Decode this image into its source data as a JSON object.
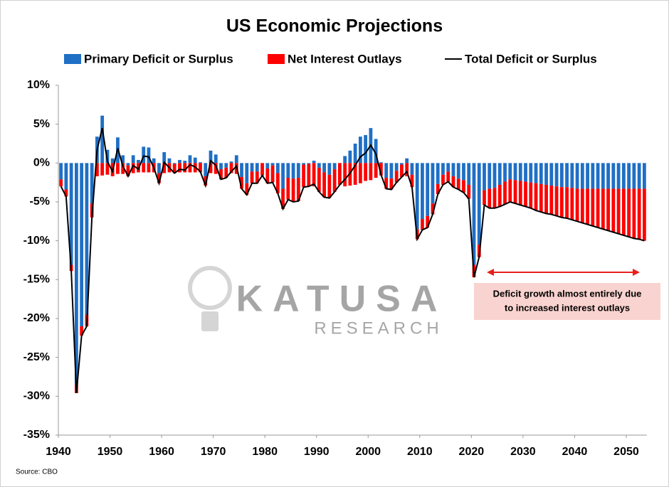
{
  "chart_data": {
    "type": "bar",
    "title": "US Economic Projections",
    "x": [
      1940,
      1941,
      1942,
      1943,
      1944,
      1945,
      1946,
      1947,
      1948,
      1949,
      1950,
      1951,
      1952,
      1953,
      1954,
      1955,
      1956,
      1957,
      1958,
      1959,
      1960,
      1961,
      1962,
      1963,
      1964,
      1965,
      1966,
      1967,
      1968,
      1969,
      1970,
      1971,
      1972,
      1973,
      1974,
      1975,
      1976,
      1977,
      1978,
      1979,
      1980,
      1981,
      1982,
      1983,
      1984,
      1985,
      1986,
      1987,
      1988,
      1989,
      1990,
      1991,
      1992,
      1993,
      1994,
      1995,
      1996,
      1997,
      1998,
      1999,
      2000,
      2001,
      2002,
      2003,
      2004,
      2005,
      2006,
      2007,
      2008,
      2009,
      2010,
      2011,
      2012,
      2013,
      2014,
      2015,
      2016,
      2017,
      2018,
      2019,
      2020,
      2021,
      2022,
      2023,
      2024,
      2025,
      2026,
      2027,
      2028,
      2029,
      2030,
      2031,
      2032,
      2033,
      2034,
      2035,
      2036,
      2037,
      2038,
      2039,
      2040,
      2041,
      2042,
      2043,
      2044,
      2045,
      2046,
      2047,
      2048,
      2049,
      2050,
      2051,
      2052,
      2053
    ],
    "series": [
      {
        "name": "Primary Deficit or Surplus",
        "color": "#1f6fc5",
        "values": [
          -2.1,
          -3.4,
          -13.1,
          -28.5,
          -21.0,
          -19.5,
          -5.2,
          3.4,
          6.1,
          1.7,
          0.6,
          3.3,
          1.0,
          -0.3,
          1.0,
          0.4,
          2.1,
          2.0,
          0.6,
          -1.3,
          1.4,
          0.6,
          -0.1,
          0.4,
          0.3,
          1.0,
          0.7,
          0.1,
          -1.7,
          1.6,
          1.1,
          -0.8,
          -0.6,
          0.2,
          1.0,
          -1.8,
          -2.6,
          -1.1,
          -1.1,
          0.0,
          -0.7,
          -0.3,
          -1.3,
          -3.3,
          -1.9,
          -2.0,
          -1.9,
          -0.2,
          -0.1,
          0.3,
          -0.6,
          -1.2,
          -1.5,
          -0.8,
          0.0,
          0.9,
          1.6,
          2.5,
          3.4,
          3.6,
          4.5,
          3.1,
          0.1,
          -1.9,
          -2.0,
          -1.0,
          -0.2,
          0.6,
          -1.5,
          -8.5,
          -7.2,
          -6.8,
          -5.2,
          -2.7,
          -1.5,
          -1.1,
          -1.7,
          -2.0,
          -2.2,
          -2.8,
          -13.1,
          -10.5,
          -3.5,
          -3.3,
          -3.2,
          -2.8,
          -2.4,
          -2.1,
          -2.2,
          -2.3,
          -2.4,
          -2.5,
          -2.6,
          -2.7,
          -2.8,
          -2.9,
          -3.0,
          -3.1,
          -3.1,
          -3.2,
          -3.3,
          -3.3,
          -3.3,
          -3.3,
          -3.3,
          -3.3,
          -3.3,
          -3.3,
          -3.3,
          -3.3,
          -3.3,
          -3.3,
          -3.3,
          -3.3
        ]
      },
      {
        "name": "Net Interest Outlays",
        "color": "#ff0000",
        "values": [
          -0.9,
          -0.9,
          -0.8,
          -1.1,
          -1.2,
          -1.5,
          -1.8,
          -1.7,
          -1.6,
          -1.5,
          -1.7,
          -1.4,
          -1.4,
          -1.4,
          -1.3,
          -1.2,
          -1.2,
          -1.2,
          -1.2,
          -1.3,
          -1.3,
          -1.2,
          -1.2,
          -1.2,
          -1.2,
          -1.2,
          -1.2,
          -1.2,
          -1.2,
          -1.3,
          -1.4,
          -1.3,
          -1.3,
          -1.3,
          -1.4,
          -1.5,
          -1.5,
          -1.5,
          -1.5,
          -1.6,
          -1.9,
          -2.2,
          -2.6,
          -2.6,
          -2.8,
          -3.0,
          -3.0,
          -2.9,
          -2.9,
          -3.0,
          -3.1,
          -3.2,
          -3.0,
          -2.9,
          -2.8,
          -3.0,
          -2.9,
          -2.8,
          -2.6,
          -2.3,
          -2.2,
          -1.9,
          -1.6,
          -1.4,
          -1.4,
          -1.5,
          -1.6,
          -1.7,
          -1.6,
          -1.3,
          -1.4,
          -1.5,
          -1.4,
          -1.3,
          -1.3,
          -1.3,
          -1.4,
          -1.4,
          -1.6,
          -1.8,
          -1.6,
          -1.6,
          -1.9,
          -2.5,
          -2.6,
          -2.8,
          -2.9,
          -2.9,
          -3.0,
          -3.1,
          -3.2,
          -3.3,
          -3.5,
          -3.6,
          -3.7,
          -3.7,
          -3.8,
          -3.9,
          -4.0,
          -4.1,
          -4.2,
          -4.4,
          -4.6,
          -4.8,
          -5.0,
          -5.2,
          -5.4,
          -5.6,
          -5.8,
          -6.0,
          -6.2,
          -6.4,
          -6.5,
          -6.7
        ]
      },
      {
        "name": "Total Deficit or Surplus",
        "color": "#000000",
        "line": true,
        "values": [
          -3.0,
          -4.3,
          -13.9,
          -29.6,
          -22.2,
          -21.0,
          -7.0,
          1.7,
          4.5,
          0.2,
          -1.1,
          1.9,
          -0.4,
          -1.7,
          -0.3,
          -0.8,
          0.9,
          0.8,
          -0.6,
          -2.6,
          0.1,
          -0.6,
          -1.3,
          -0.8,
          -0.9,
          -0.2,
          -0.5,
          -1.1,
          -2.9,
          0.3,
          -0.3,
          -2.1,
          -1.9,
          -1.1,
          -0.4,
          -3.3,
          -4.1,
          -2.6,
          -2.6,
          -1.6,
          -2.6,
          -2.5,
          -3.9,
          -5.9,
          -4.7,
          -5.0,
          -4.9,
          -3.1,
          -3.0,
          -2.7,
          -3.7,
          -4.4,
          -4.5,
          -3.7,
          -2.8,
          -2.1,
          -1.3,
          -0.3,
          0.8,
          1.3,
          2.3,
          1.2,
          -1.5,
          -3.3,
          -3.4,
          -2.5,
          -1.8,
          -1.1,
          -3.1,
          -9.8,
          -8.6,
          -8.3,
          -6.6,
          -4.0,
          -2.8,
          -2.4,
          -3.1,
          -3.4,
          -3.8,
          -4.6,
          -14.7,
          -12.1,
          -5.4,
          -5.8,
          -5.8,
          -5.6,
          -5.3,
          -5.0,
          -5.2,
          -5.4,
          -5.6,
          -5.8,
          -6.1,
          -6.3,
          -6.5,
          -6.6,
          -6.8,
          -7.0,
          -7.1,
          -7.3,
          -7.5,
          -7.7,
          -7.9,
          -8.1,
          -8.3,
          -8.5,
          -8.7,
          -8.9,
          -9.1,
          -9.3,
          -9.5,
          -9.7,
          -9.8,
          -10.0
        ]
      }
    ],
    "xlim": [
      1940,
      2054
    ],
    "xticks": [
      1940,
      1950,
      1960,
      1970,
      1980,
      1990,
      2000,
      2010,
      2020,
      2030,
      2040,
      2050
    ],
    "ylim": [
      -35,
      10
    ],
    "yticks": [
      {
        "value": 10,
        "label": "10%"
      },
      {
        "value": 5,
        "label": "5%"
      },
      {
        "value": 0,
        "label": "0%"
      },
      {
        "value": -5,
        "label": "-5%"
      },
      {
        "value": -10,
        "label": "-10%"
      },
      {
        "value": -15,
        "label": "-15%"
      },
      {
        "value": -20,
        "label": "-20%"
      },
      {
        "value": -25,
        "label": "-25%"
      },
      {
        "value": -30,
        "label": "-30%"
      },
      {
        "value": -35,
        "label": "-35%"
      }
    ],
    "annotation": [
      "Deficit growth almost entirely due",
      "to increased interest outlays"
    ],
    "watermark": [
      "KATUSA",
      "RESEARCH"
    ],
    "source": "Source: CBO"
  }
}
